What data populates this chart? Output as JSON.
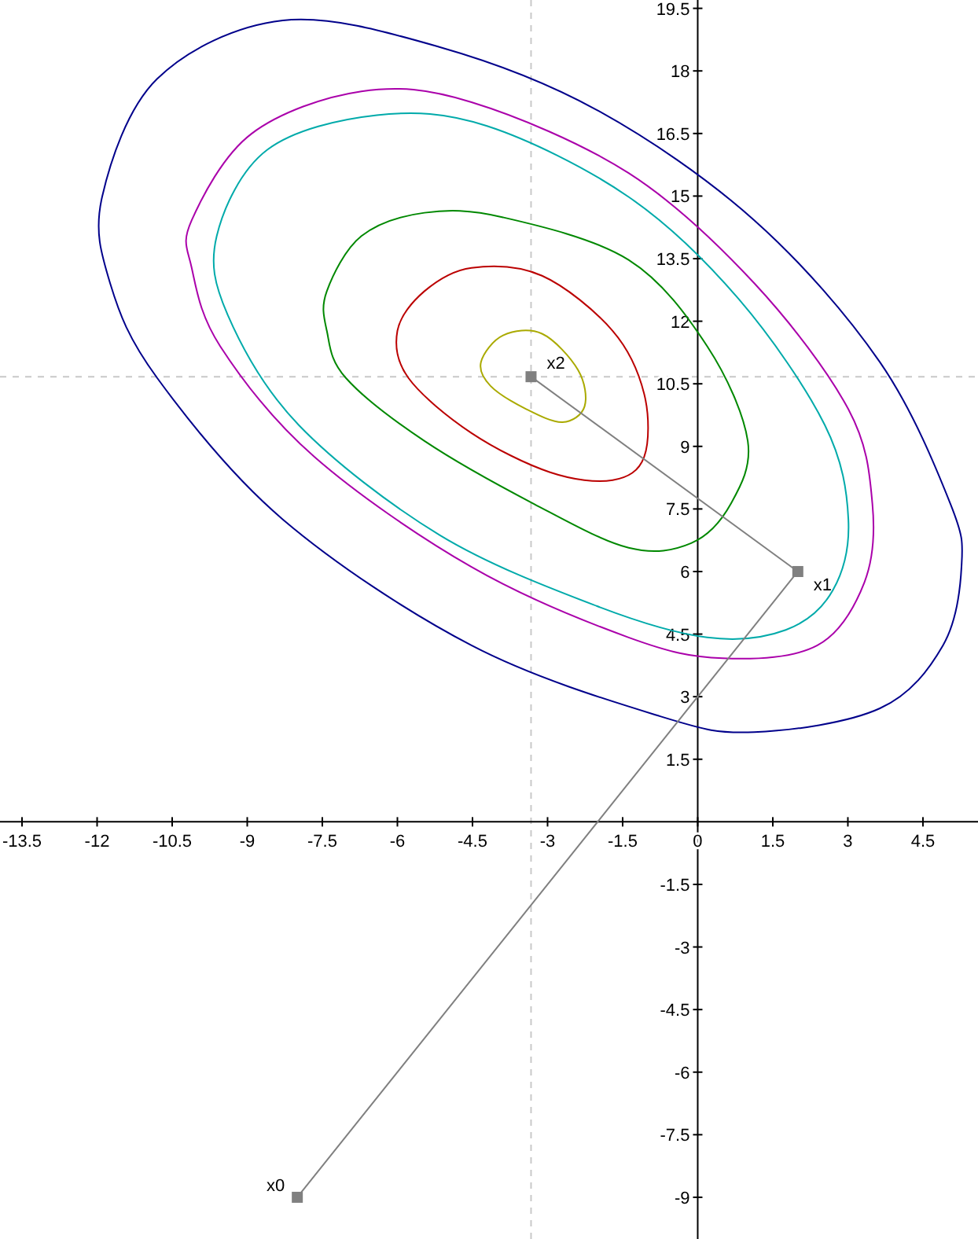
{
  "chart_data": {
    "type": "line",
    "xlim": [
      -13.94,
      5.6
    ],
    "ylim": [
      -10,
      19.7
    ],
    "xticks": [
      -13.5,
      -12,
      -10.5,
      -9,
      -7.5,
      -6,
      -4.5,
      -3,
      -1.5,
      0,
      1.5,
      3,
      4.5
    ],
    "yticks": [
      -9,
      -7.5,
      -6,
      -4.5,
      -3,
      -1.5,
      1.5,
      3,
      4.5,
      6,
      7.5,
      9,
      10.5,
      12,
      13.5,
      15,
      16.5,
      18,
      19.5
    ],
    "grid": false,
    "marker": "square",
    "line_style": "solid",
    "series": [
      {
        "color": "#808080",
        "x": [
          -8,
          2,
          -3.33
        ],
        "values": [
          -9,
          6,
          10.67
        ]
      }
    ],
    "ref_lines": [
      {
        "axis": "x",
        "value": -3.33,
        "color": "#c8c8c8",
        "line_style": "dashed"
      },
      {
        "axis": "y",
        "value": 10.67,
        "color": "#c8c8c8",
        "line_style": "dashed"
      }
    ],
    "annotations": [
      {
        "text": "x0",
        "x": -8,
        "y": -9
      },
      {
        "text": "x1",
        "x": 2,
        "y": 6
      },
      {
        "text": "x2",
        "x": -3.33,
        "y": 10.67
      }
    ]
  }
}
